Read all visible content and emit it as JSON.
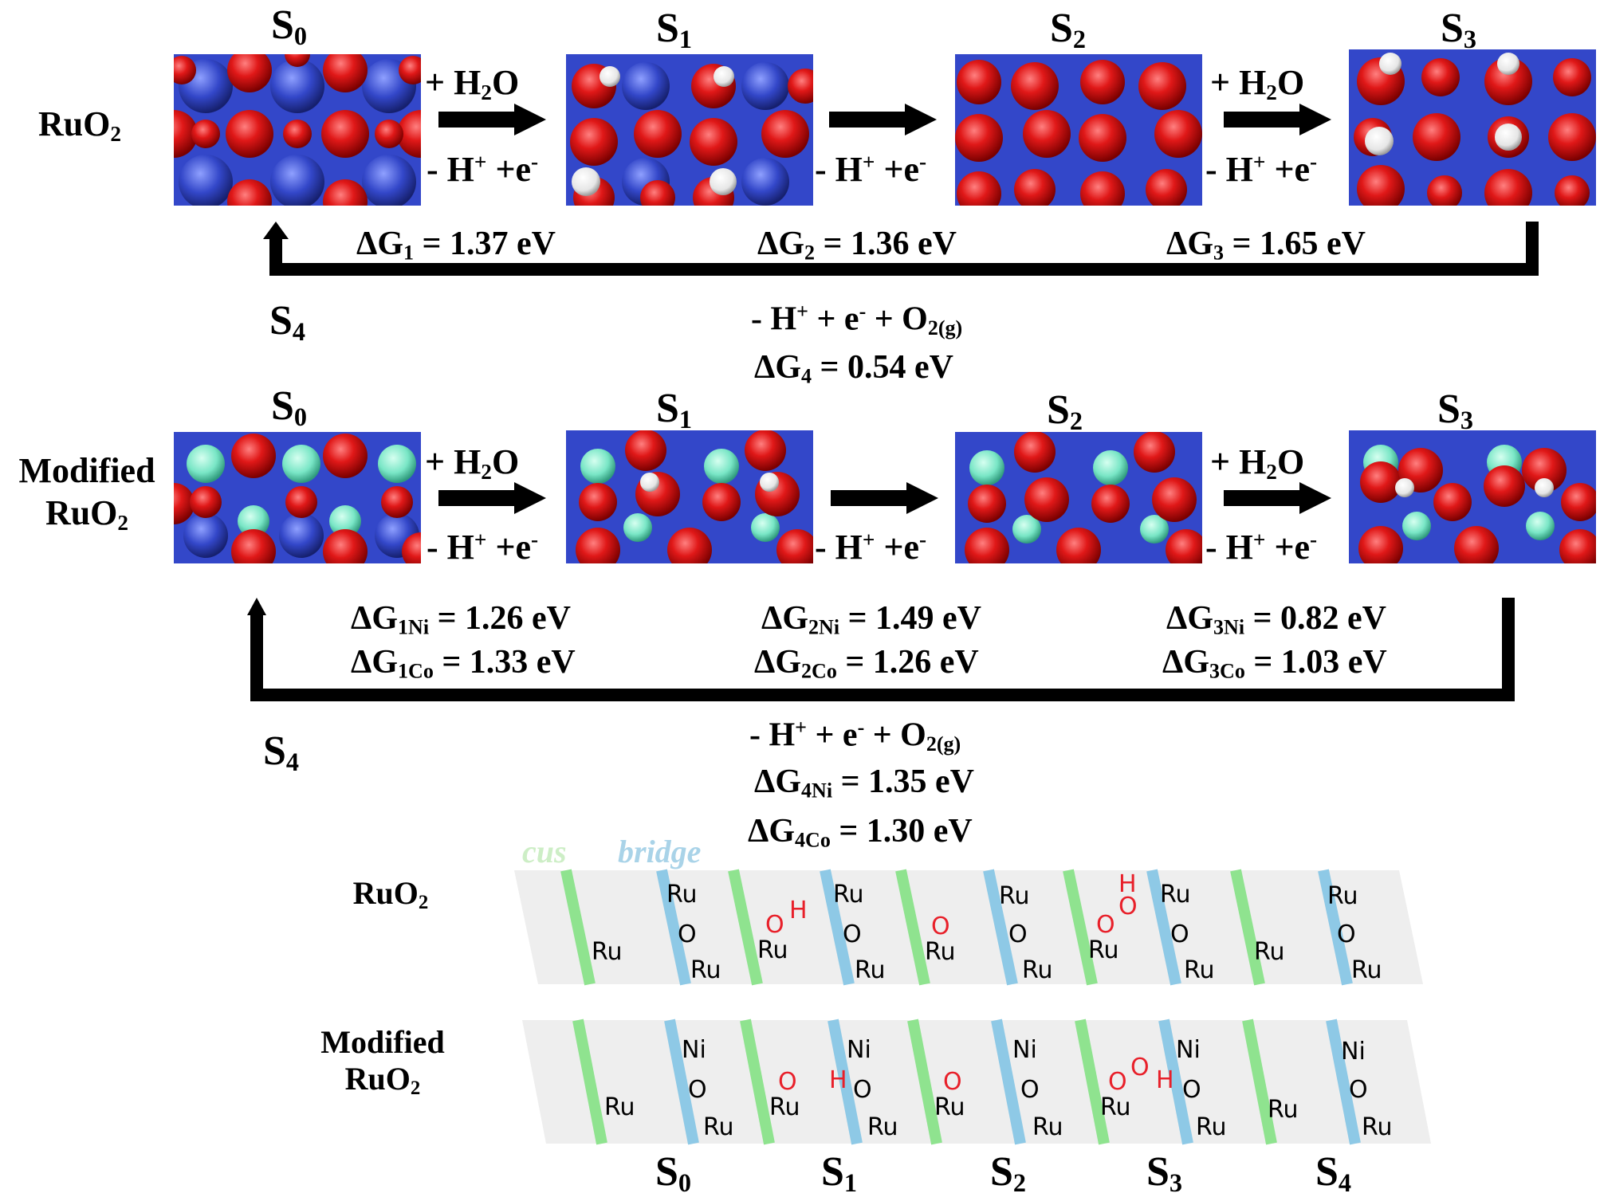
{
  "top_row": {
    "label_line1": "RuO",
    "label_sub": "2",
    "states": [
      "0",
      "1",
      "2",
      "3"
    ],
    "state_prefix": "S",
    "steps": [
      {
        "top": "+ H",
        "top_sub": "2",
        "top_end": "O",
        "bottom": "- H",
        "bottom_sup": "+",
        "bottom_end": " +e",
        "bottom_sup2": "-"
      },
      {
        "top": "",
        "bottom": "- H",
        "bottom_sup": "+",
        "bottom_end": " +e",
        "bottom_sup2": "-"
      },
      {
        "top": "+ H",
        "top_sub": "2",
        "top_end": "O",
        "bottom": "- H",
        "bottom_sup": "+",
        "bottom_end": " +e",
        "bottom_sup2": "-"
      }
    ],
    "dG": [
      {
        "pre": "ΔG",
        "sub": "1",
        "val": " = 1.37 eV"
      },
      {
        "pre": "ΔG",
        "sub": "2",
        "val": " = 1.36 eV"
      },
      {
        "pre": "ΔG",
        "sub": "3",
        "val": " = 1.65 eV"
      }
    ],
    "s4_sub": "4",
    "return_eq": {
      "a": "- H",
      "sup": "+",
      "b": " + e",
      "sup2": "-",
      "c": " + O",
      "sub": "2(g)"
    },
    "dG4": {
      "pre": "ΔG",
      "sub": "4",
      "val": " = 0.54 eV"
    }
  },
  "mod_row": {
    "label_line1": "Modified",
    "label_line2": "RuO",
    "label_sub": "2",
    "dG": [
      [
        {
          "pre": "ΔG",
          "sub": "1Ni",
          "val": " = 1.26 eV"
        },
        {
          "pre": "ΔG",
          "sub": "1Co",
          "val": " = 1.33 eV"
        }
      ],
      [
        {
          "pre": "ΔG",
          "sub": "2Ni",
          "val": " = 1.49 eV"
        },
        {
          "pre": "ΔG",
          "sub": "2Co",
          "val": " = 1.26 eV"
        }
      ],
      [
        {
          "pre": "ΔG",
          "sub": "3Ni",
          "val": " = 0.82 eV"
        },
        {
          "pre": "ΔG",
          "sub": "3Co",
          "val": " = 1.03 eV"
        }
      ]
    ],
    "return_eq": {
      "a": "- H",
      "sup": "+",
      "b": " + e",
      "sup2": "-",
      "c": " + O",
      "sub": "2(g)"
    },
    "dG4": [
      {
        "pre": "ΔG",
        "sub": "4Ni",
        "val": " = 1.35 eV"
      },
      {
        "pre": "ΔG",
        "sub": "4Co",
        "val": " = 1.30 eV"
      }
    ]
  },
  "schematic": {
    "cus_label": "cus",
    "bridge_label": "bridge",
    "row1_label": "RuO",
    "row1_sub": "2",
    "row2_label_line1": "Modified",
    "row2_label_line2": "RuO",
    "row2_sub": "2",
    "bottom_states": [
      "0",
      "1",
      "2",
      "3",
      "4"
    ],
    "atoms": {
      "ru": "Ru",
      "o": "O",
      "h": "H",
      "ni": "Ni"
    },
    "colors": {
      "cus": "#8fe38f",
      "bridge": "#8ec9e6",
      "adsorbate": "#e8202a",
      "surface": "#eeeeee"
    }
  }
}
